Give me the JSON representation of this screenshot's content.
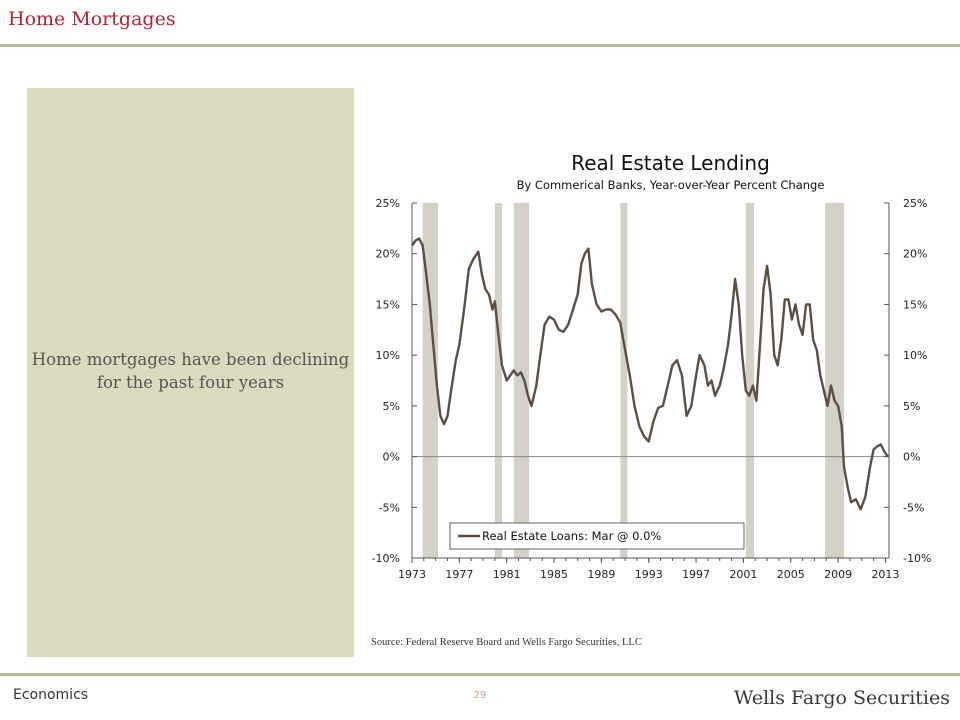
{
  "slide": {
    "title": "Home Mortgages",
    "commentary": "Home mortgages have been declining for the past four years",
    "source": "Source: Federal Reserve Board and Wells Fargo Securities, LLC",
    "footer_section": "Economics",
    "page_number": "29",
    "brand": "Wells Fargo Securities"
  },
  "colors": {
    "title": "#b22234",
    "panel": "#dadabf",
    "rule": "#b6b79c",
    "series": "#5b4f45",
    "recession": "#d6d1c6"
  },
  "chart_data": {
    "type": "line",
    "title": "Real Estate Lending",
    "subtitle": "By Commerical Banks, Year-over-Year Percent Change",
    "x_ticks": [
      "1973",
      "1977",
      "1981",
      "1985",
      "1989",
      "1993",
      "1997",
      "2001",
      "2005",
      "2009",
      "2013"
    ],
    "y_ticks": [
      "25%",
      "20%",
      "15%",
      "10%",
      "5%",
      "0%",
      "-5%",
      "-10%"
    ],
    "xlim": [
      1973,
      2013.3
    ],
    "ylim": [
      -10,
      25
    ],
    "grid": false,
    "legend_position": "bottom-left",
    "recession_shading": [
      [
        1973.9,
        1975.2
      ],
      [
        1980.0,
        1980.6
      ],
      [
        1981.6,
        1982.9
      ],
      [
        1990.6,
        1991.2
      ],
      [
        2001.2,
        2001.9
      ],
      [
        2007.9,
        2009.5
      ]
    ],
    "series": [
      {
        "name": "Real Estate Loans: Mar @ 0.0%",
        "points": [
          [
            1973.0,
            20.8
          ],
          [
            1973.3,
            21.3
          ],
          [
            1973.6,
            21.5
          ],
          [
            1973.9,
            20.8
          ],
          [
            1974.2,
            18.0
          ],
          [
            1974.5,
            15.0
          ],
          [
            1974.8,
            11.0
          ],
          [
            1975.1,
            7.0
          ],
          [
            1975.4,
            4.0
          ],
          [
            1975.7,
            3.2
          ],
          [
            1976.0,
            4.0
          ],
          [
            1976.3,
            6.5
          ],
          [
            1976.7,
            9.5
          ],
          [
            1977.0,
            11.0
          ],
          [
            1977.4,
            14.5
          ],
          [
            1977.8,
            18.5
          ],
          [
            1978.2,
            19.5
          ],
          [
            1978.6,
            20.2
          ],
          [
            1978.9,
            18.0
          ],
          [
            1979.2,
            16.5
          ],
          [
            1979.5,
            16.0
          ],
          [
            1979.8,
            14.5
          ],
          [
            1980.0,
            15.3
          ],
          [
            1980.3,
            12.0
          ],
          [
            1980.6,
            9.0
          ],
          [
            1981.0,
            7.5
          ],
          [
            1981.3,
            8.0
          ],
          [
            1981.6,
            8.5
          ],
          [
            1981.9,
            8.0
          ],
          [
            1982.2,
            8.3
          ],
          [
            1982.5,
            7.5
          ],
          [
            1982.8,
            6.0
          ],
          [
            1983.1,
            5.0
          ],
          [
            1983.5,
            7.0
          ],
          [
            1983.9,
            10.5
          ],
          [
            1984.2,
            13.0
          ],
          [
            1984.6,
            13.8
          ],
          [
            1985.0,
            13.5
          ],
          [
            1985.4,
            12.5
          ],
          [
            1985.8,
            12.3
          ],
          [
            1986.2,
            13.0
          ],
          [
            1986.6,
            14.5
          ],
          [
            1987.0,
            16.0
          ],
          [
            1987.3,
            19.0
          ],
          [
            1987.6,
            20.0
          ],
          [
            1987.9,
            20.5
          ],
          [
            1988.2,
            17.0
          ],
          [
            1988.6,
            15.0
          ],
          [
            1989.0,
            14.3
          ],
          [
            1989.4,
            14.5
          ],
          [
            1989.8,
            14.5
          ],
          [
            1990.2,
            14.0
          ],
          [
            1990.6,
            13.2
          ],
          [
            1991.0,
            10.5
          ],
          [
            1991.4,
            8.0
          ],
          [
            1991.8,
            5.0
          ],
          [
            1992.2,
            3.0
          ],
          [
            1992.6,
            2.0
          ],
          [
            1993.0,
            1.5
          ],
          [
            1993.4,
            3.5
          ],
          [
            1993.8,
            4.8
          ],
          [
            1994.2,
            5.0
          ],
          [
            1994.6,
            7.0
          ],
          [
            1995.0,
            9.0
          ],
          [
            1995.4,
            9.5
          ],
          [
            1995.8,
            8.0
          ],
          [
            1996.2,
            4.0
          ],
          [
            1996.6,
            5.0
          ],
          [
            1997.0,
            8.0
          ],
          [
            1997.3,
            10.0
          ],
          [
            1997.7,
            9.0
          ],
          [
            1998.0,
            7.0
          ],
          [
            1998.3,
            7.5
          ],
          [
            1998.6,
            6.0
          ],
          [
            1999.0,
            7.0
          ],
          [
            1999.3,
            8.5
          ],
          [
            1999.7,
            11.0
          ],
          [
            2000.0,
            14.0
          ],
          [
            2000.3,
            17.5
          ],
          [
            2000.6,
            15.0
          ],
          [
            2000.9,
            10.0
          ],
          [
            2001.2,
            6.5
          ],
          [
            2001.5,
            6.0
          ],
          [
            2001.8,
            7.0
          ],
          [
            2002.1,
            5.5
          ],
          [
            2002.4,
            11.0
          ],
          [
            2002.7,
            16.5
          ],
          [
            2003.0,
            18.8
          ],
          [
            2003.3,
            16.0
          ],
          [
            2003.6,
            10.0
          ],
          [
            2003.9,
            9.0
          ],
          [
            2004.2,
            11.5
          ],
          [
            2004.5,
            15.5
          ],
          [
            2004.8,
            15.5
          ],
          [
            2005.1,
            13.5
          ],
          [
            2005.4,
            15.0
          ],
          [
            2005.7,
            13.0
          ],
          [
            2006.0,
            12.0
          ],
          [
            2006.3,
            15.0
          ],
          [
            2006.6,
            15.0
          ],
          [
            2006.9,
            11.5
          ],
          [
            2007.2,
            10.5
          ],
          [
            2007.5,
            8.0
          ],
          [
            2007.8,
            6.5
          ],
          [
            2008.1,
            5.0
          ],
          [
            2008.4,
            7.0
          ],
          [
            2008.7,
            5.5
          ],
          [
            2009.0,
            5.0
          ],
          [
            2009.3,
            3.0
          ],
          [
            2009.5,
            -1.0
          ],
          [
            2009.8,
            -3.0
          ],
          [
            2010.1,
            -4.5
          ],
          [
            2010.5,
            -4.2
          ],
          [
            2010.9,
            -5.2
          ],
          [
            2011.3,
            -4.0
          ],
          [
            2011.7,
            -1.0
          ],
          [
            2012.0,
            0.7
          ],
          [
            2012.3,
            1.0
          ],
          [
            2012.6,
            1.2
          ],
          [
            2012.9,
            0.5
          ],
          [
            2013.2,
            0.0
          ]
        ]
      }
    ]
  }
}
